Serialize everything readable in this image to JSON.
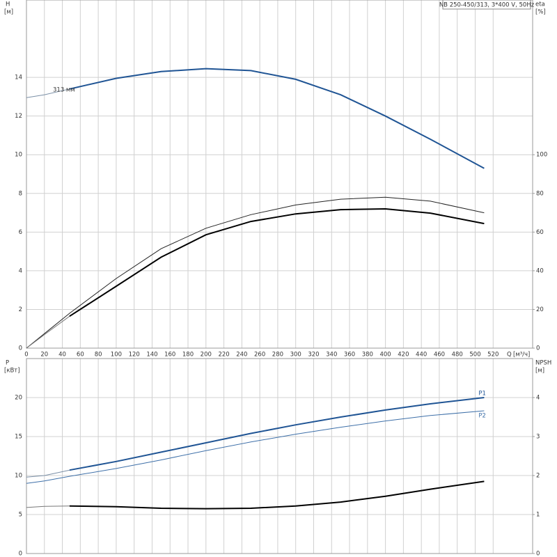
{
  "chart_data": [
    {
      "type": "line",
      "title": "NB 250-450/313, 3*400 V, 50Hz",
      "y_label": "H",
      "y_unit": "[м]",
      "y2_label": "eta",
      "y2_unit": "[%]",
      "x_label": "Q",
      "x_unit": "[м³/ч]",
      "annotation": "313 мм",
      "x": [
        0,
        20,
        48,
        100,
        150,
        200,
        250,
        300,
        350,
        400,
        450,
        510
      ],
      "xlim": [
        0,
        564
      ],
      "xticks": [
        0,
        20,
        40,
        60,
        80,
        100,
        120,
        140,
        160,
        180,
        200,
        220,
        240,
        260,
        280,
        300,
        320,
        340,
        360,
        380,
        400,
        420,
        440,
        460,
        480,
        500,
        520
      ],
      "ylim": [
        0,
        18
      ],
      "yticks": [
        0,
        2,
        4,
        6,
        8,
        10,
        12,
        14
      ],
      "y2lim": [
        0,
        180
      ],
      "y2ticks": [
        0,
        20,
        40,
        60,
        80,
        100
      ],
      "grid": true,
      "series": [
        {
          "color": "#7a8fa6",
          "width": 1,
          "values": [
            12.95,
            13.1,
            13.4,
            null,
            null,
            null,
            null,
            null,
            null,
            null,
            null,
            null
          ]
        },
        {
          "color": "#1f5494",
          "width": 2,
          "values": [
            null,
            null,
            13.4,
            13.95,
            14.3,
            14.45,
            14.35,
            13.9,
            13.1,
            12.0,
            10.8,
            9.3
          ]
        },
        {
          "color": "#222222",
          "width": 1,
          "axis": "y2",
          "values": [
            0,
            7.5,
            18,
            36,
            51.4,
            62,
            69,
            74,
            77,
            78,
            76,
            70
          ]
        },
        {
          "color": "#777777",
          "width": 1,
          "axis": "y2",
          "values": [
            0,
            7,
            16.5,
            null,
            null,
            null,
            null,
            null,
            null,
            null,
            null,
            null
          ]
        },
        {
          "color": "#000000",
          "width": 2,
          "axis": "y2",
          "values": [
            null,
            null,
            16.5,
            32,
            47,
            58.6,
            65.5,
            69.4,
            71.6,
            72,
            69.8,
            64.4
          ]
        }
      ]
    },
    {
      "type": "line",
      "y_label": "P",
      "y_unit": "[кВт]",
      "y2_label": "NPSH",
      "y2_unit": "[м]",
      "x": [
        0,
        20,
        48,
        100,
        150,
        200,
        250,
        300,
        350,
        400,
        450,
        510
      ],
      "xlim": [
        0,
        564
      ],
      "xticks": [
        0,
        20,
        40,
        60,
        80,
        100,
        120,
        140,
        160,
        180,
        200,
        220,
        240,
        260,
        280,
        300,
        320,
        340,
        360,
        380,
        400,
        420,
        440,
        460,
        480,
        500,
        520
      ],
      "ylim": [
        0,
        25
      ],
      "yticks": [
        0,
        5,
        10,
        15,
        20
      ],
      "y2lim": [
        0,
        5
      ],
      "y2ticks": [
        0,
        1,
        2,
        3,
        4
      ],
      "grid": true,
      "series": [
        {
          "color": "#7a8fa6",
          "width": 1,
          "values": [
            9.8,
            10.0,
            10.7,
            null,
            null,
            null,
            null,
            null,
            null,
            null,
            null,
            null
          ]
        },
        {
          "name": "P1",
          "color": "#1f5494",
          "width": 2,
          "values": [
            null,
            null,
            10.7,
            11.8,
            13.0,
            14.2,
            15.4,
            16.5,
            17.5,
            18.4,
            19.2,
            20.0
          ]
        },
        {
          "name": "P2",
          "color": "#3d6fa8",
          "width": 1,
          "values": [
            9.0,
            9.3,
            9.9,
            10.9,
            12.0,
            13.2,
            14.3,
            15.3,
            16.2,
            17.0,
            17.7,
            18.3
          ]
        },
        {
          "color": "#777777",
          "width": 1,
          "axis": "y2",
          "values": [
            1.18,
            1.21,
            1.22,
            null,
            null,
            null,
            null,
            null,
            null,
            null,
            null,
            null
          ]
        },
        {
          "color": "#000000",
          "width": 2,
          "axis": "y2",
          "values": [
            null,
            null,
            1.22,
            1.2,
            1.16,
            1.15,
            1.16,
            1.22,
            1.32,
            1.47,
            1.65,
            1.85
          ]
        }
      ]
    }
  ]
}
